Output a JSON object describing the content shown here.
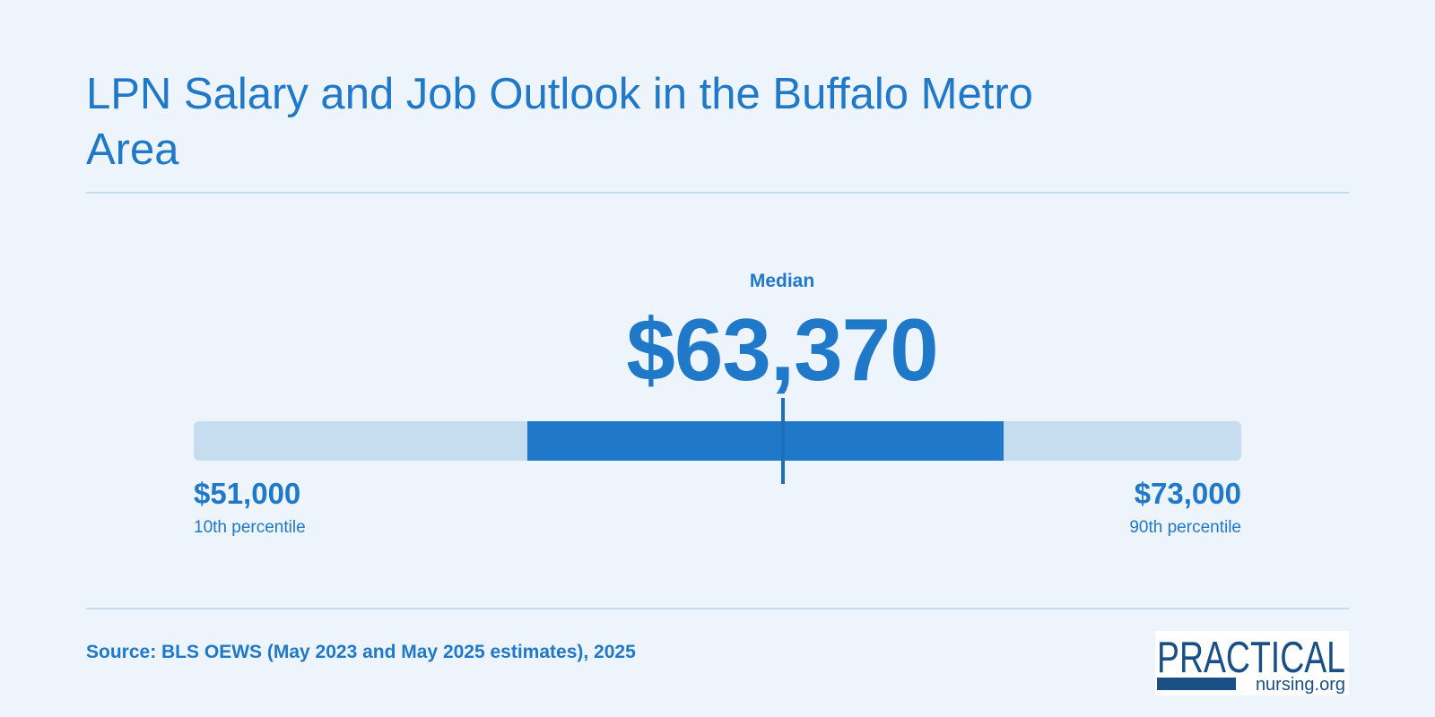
{
  "header": {
    "title": "LPN Salary and Job Outlook in the Buffalo Metro Area"
  },
  "chart_data": {
    "type": "range",
    "title": "LPN Salary and Job Outlook in the Buffalo Metro Area",
    "median": {
      "label": "Median",
      "value": 63370,
      "display": "$63,370"
    },
    "low": {
      "label": "10th percentile",
      "value": 51000,
      "display": "$51,000"
    },
    "high": {
      "label": "90th percentile",
      "value": 73000,
      "display": "$73,000"
    },
    "middle_band_estimate": [
      58000,
      68000
    ],
    "colors": {
      "track": "#c6ddf0",
      "band": "#2078c8",
      "median_marker": "#1f6fb8",
      "text": "#2078c8"
    }
  },
  "footer": {
    "source": "Source: BLS OEWS (May 2023 and May 2025 estimates), 2025"
  },
  "logo": {
    "brand_top": "PRACTICAL",
    "brand_bottom": "nursing.org",
    "color": "#1a4f86"
  }
}
